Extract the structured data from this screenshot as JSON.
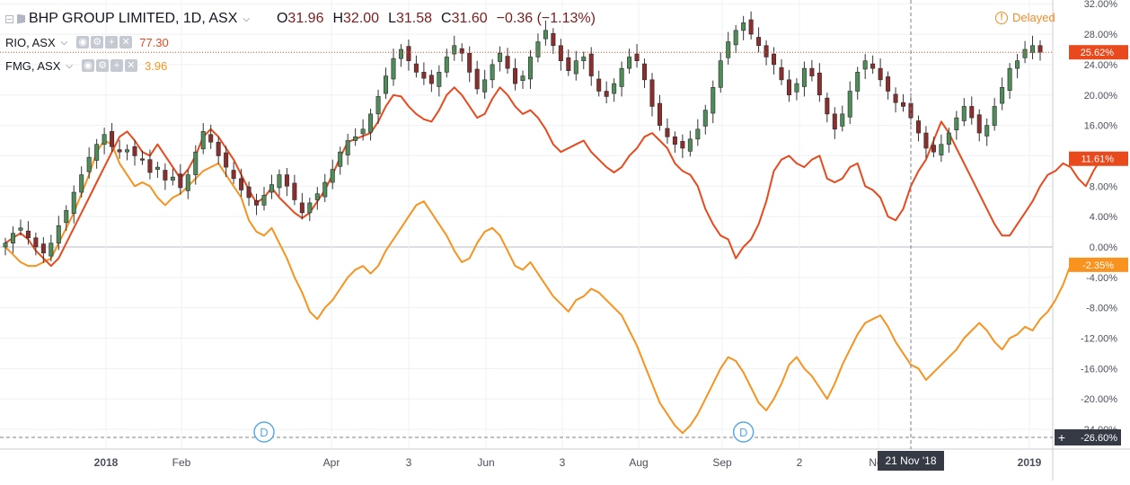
{
  "header": {
    "main_symbol": "BHP GROUP LIMITED, 1D, ASX",
    "ohlc": {
      "o": "31.96",
      "h": "32.00",
      "l": "31.58",
      "c": "31.60",
      "change": "−0.36 (−1.13%)"
    },
    "compare": [
      {
        "symbol": "RIO, ASX",
        "value": "77.30",
        "color": "#e8491d"
      },
      {
        "symbol": "FMG, ASX",
        "value": "3.96",
        "color": "#f7931e"
      }
    ],
    "delayed_label": "Delayed"
  },
  "chart_data": {
    "type": "line",
    "y_unit": "%",
    "ylim": [
      -26.6,
      32.5
    ],
    "y_ticks": [
      "32.00%",
      "28.00%",
      "24.00%",
      "20.00%",
      "16.00%",
      "12.00%",
      "8.00%",
      "4.00%",
      "0.00%",
      "-4.00%",
      "-8.00%",
      "-12.00%",
      "-16.00%",
      "-20.00%",
      "-24.00%"
    ],
    "x_ticks": [
      "2018",
      "Feb",
      "Apr",
      "3",
      "Jun",
      "3",
      "Aug",
      "Sep",
      "2",
      "Nov",
      "2019"
    ],
    "crosshair_x_label": "21 Nov '18",
    "crosshair_y_label": "-26.60%",
    "last_value_labels": [
      {
        "text": "25.62%",
        "color": "#e8491d"
      },
      {
        "text": "11.61%",
        "color": "#e8491d"
      },
      {
        "text": "-2.35%",
        "color": "#f7931e"
      }
    ],
    "dividend_markers": [
      "D",
      "D"
    ],
    "series": [
      {
        "name": "BHP",
        "kind": "candles",
        "close": [
          0.5,
          1.8,
          2.5,
          1.2,
          0.0,
          -0.8,
          0.5,
          2.8,
          4.8,
          7.2,
          9.5,
          11.8,
          13.5,
          14.8,
          13.2,
          12.5,
          12.8,
          12.0,
          11.5,
          9.8,
          10.5,
          8.8,
          9.2,
          7.8,
          9.5,
          12.5,
          15.2,
          13.8,
          12.0,
          10.5,
          9.0,
          7.5,
          6.5,
          5.5,
          6.8,
          8.2,
          9.5,
          8.0,
          6.2,
          4.5,
          5.8,
          7.0,
          8.5,
          10.2,
          12.5,
          14.0,
          14.5,
          15.5,
          17.5,
          19.8,
          22.5,
          24.8,
          26.0,
          24.5,
          23.0,
          22.2,
          21.5,
          23.0,
          25.0,
          26.5,
          25.5,
          23.0,
          20.8,
          22.0,
          24.0,
          25.5,
          23.5,
          21.5,
          22.5,
          25.0,
          27.0,
          28.5,
          26.5,
          24.5,
          23.2,
          24.5,
          25.0,
          22.5,
          20.5,
          19.8,
          21.5,
          23.5,
          25.0,
          24.5,
          22.0,
          18.5,
          16.0,
          14.5,
          13.5,
          13.0,
          14.2,
          15.5,
          18.0,
          21.0,
          24.5,
          27.0,
          28.5,
          29.5,
          28.0,
          26.5,
          25.0,
          24.0,
          22.0,
          20.0,
          21.5,
          23.5,
          22.5,
          20.0,
          17.5,
          15.5,
          17.5,
          20.5,
          23.0,
          24.5,
          23.5,
          22.0,
          20.5,
          19.0,
          18.5,
          17.0,
          15.0,
          13.0,
          12.5,
          13.5,
          15.0,
          17.0,
          18.5,
          17.0,
          15.0,
          16.0,
          18.5,
          21.0,
          23.5,
          24.5,
          26.0,
          26.5,
          25.62
        ]
      },
      {
        "name": "RIO, ASX",
        "color": "#e8491d",
        "values": [
          0.5,
          1.2,
          1.8,
          1.0,
          -0.5,
          -1.5,
          -2.5,
          -1.5,
          0.5,
          2.5,
          4.5,
          6.5,
          8.5,
          10.5,
          12.5,
          14.5,
          15.2,
          14.0,
          12.5,
          12.0,
          13.5,
          12.0,
          10.5,
          9.0,
          10.2,
          12.0,
          14.5,
          15.5,
          14.5,
          13.0,
          11.5,
          9.5,
          7.5,
          5.8,
          6.5,
          7.8,
          6.5,
          5.5,
          4.5,
          3.8,
          4.5,
          6.0,
          7.5,
          9.5,
          11.8,
          13.8,
          14.2,
          14.6,
          15.0,
          16.5,
          18.5,
          20.0,
          19.8,
          18.5,
          17.5,
          16.8,
          16.5,
          18.0,
          20.0,
          21.0,
          20.0,
          18.5,
          17.0,
          17.5,
          19.5,
          21.0,
          20.0,
          18.5,
          17.5,
          18.0,
          17.0,
          15.5,
          13.5,
          12.5,
          13.0,
          13.5,
          14.0,
          12.5,
          11.5,
          10.5,
          9.8,
          10.5,
          12.0,
          13.0,
          14.5,
          15.0,
          14.0,
          13.0,
          11.0,
          10.0,
          9.5,
          8.0,
          5.0,
          3.0,
          1.5,
          1.0,
          -1.5,
          0.0,
          1.0,
          3.0,
          6.0,
          10.0,
          11.5,
          12.0,
          11.0,
          10.5,
          11.5,
          12.0,
          9.0,
          8.5,
          9.0,
          10.5,
          11.0,
          8.0,
          7.5,
          6.5,
          4.0,
          3.5,
          5.0,
          8.0,
          10.0,
          11.5,
          14.0,
          16.5,
          15.0,
          13.0,
          11.0,
          9.0,
          7.0,
          5.0,
          3.0,
          1.5,
          1.5,
          3.0,
          4.5,
          6.0,
          8.0,
          9.5,
          10.0,
          11.0,
          10.5,
          9.0,
          8.0,
          10.0,
          11.61
        ]
      },
      {
        "name": "FMG, ASX",
        "color": "#f7931e",
        "values": [
          0.0,
          -1.0,
          -2.0,
          -2.5,
          -2.5,
          -2.0,
          -1.5,
          0.5,
          2.5,
          4.5,
          7.0,
          9.5,
          12.5,
          14.0,
          13.5,
          11.0,
          9.5,
          8.0,
          8.5,
          8.0,
          6.5,
          5.5,
          6.5,
          7.0,
          8.0,
          9.0,
          10.0,
          10.5,
          11.0,
          9.5,
          8.0,
          6.5,
          3.5,
          2.0,
          1.5,
          2.5,
          0.5,
          -1.5,
          -4.0,
          -6.0,
          -8.5,
          -9.5,
          -8.0,
          -7.0,
          -5.5,
          -4.0,
          -3.0,
          -2.5,
          -3.5,
          -2.5,
          -0.5,
          1.0,
          2.5,
          4.0,
          5.5,
          6.0,
          4.5,
          3.0,
          1.5,
          -0.5,
          -2.0,
          -1.5,
          0.5,
          2.0,
          2.5,
          1.5,
          -0.5,
          -2.5,
          -3.0,
          -2.0,
          -3.5,
          -5.0,
          -6.5,
          -7.5,
          -8.5,
          -7.0,
          -6.5,
          -5.5,
          -6.0,
          -7.0,
          -8.0,
          -9.0,
          -11.0,
          -13.0,
          -15.5,
          -18.0,
          -20.5,
          -22.0,
          -23.5,
          -24.5,
          -23.5,
          -22.0,
          -20.0,
          -18.0,
          -16.0,
          -14.5,
          -15.0,
          -16.5,
          -18.5,
          -20.5,
          -21.5,
          -20.0,
          -18.0,
          -15.5,
          -14.5,
          -16.0,
          -17.0,
          -18.5,
          -20.0,
          -18.0,
          -15.5,
          -13.5,
          -11.5,
          -10.0,
          -9.5,
          -9.0,
          -10.5,
          -12.5,
          -14.0,
          -15.5,
          -16.0,
          -17.5,
          -16.5,
          -15.5,
          -14.5,
          -13.5,
          -12.0,
          -11.0,
          -10.0,
          -11.0,
          -12.5,
          -13.5,
          -12.0,
          -11.5,
          -10.5,
          -11.0,
          -9.5,
          -8.5,
          -7.0,
          -5.0,
          -2.35
        ]
      }
    ]
  }
}
